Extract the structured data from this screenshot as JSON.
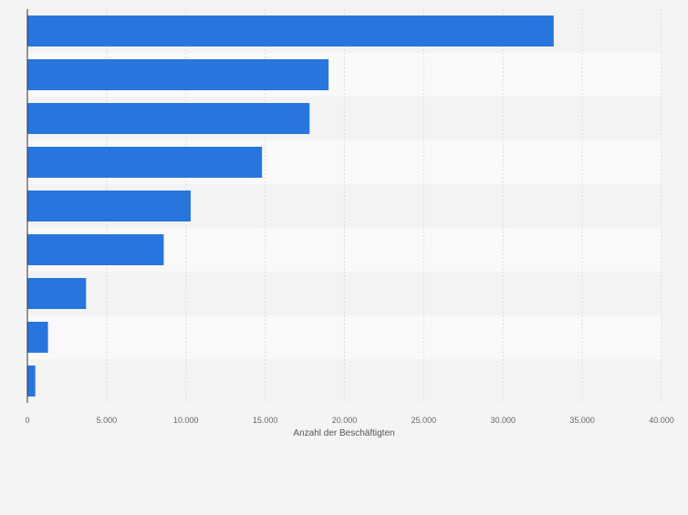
{
  "chart_data": {
    "type": "bar",
    "orientation": "horizontal",
    "categories": [
      "",
      "",
      "",
      "",
      "",
      "",
      "",
      "",
      ""
    ],
    "values": [
      33200,
      19000,
      17800,
      14800,
      10300,
      8600,
      3700,
      1300,
      500
    ],
    "xlabel": "Anzahl der Beschäftigten",
    "ylabel": "",
    "xlim": [
      0,
      40000
    ],
    "x_ticks": [
      0,
      5000,
      10000,
      15000,
      20000,
      25000,
      30000,
      35000,
      40000
    ],
    "x_tick_labels": [
      "0",
      "5.000",
      "10.000",
      "15.000",
      "20.000",
      "25.000",
      "30.000",
      "35.000",
      "40.000"
    ],
    "grid": true,
    "colors": {
      "bar": "#2876dd",
      "band_odd": "#f3f3f3",
      "band_even": "#f9f9f9",
      "page_bg": "#f4f4f4",
      "grid": "#dcdcdc",
      "axis": "#333333",
      "tick_text": "#666666"
    }
  }
}
